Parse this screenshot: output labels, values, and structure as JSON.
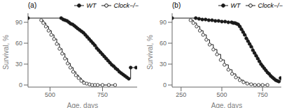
{
  "chart_data": [
    {
      "type": "step",
      "annotation": "(a)",
      "xlabel": "Age, days",
      "ylabel": "Survival, %",
      "xlim": [
        395,
        915
      ],
      "xticks": [
        500,
        750
      ],
      "ylim": [
        -3,
        103
      ],
      "yticks": [
        0,
        30,
        60,
        90
      ],
      "grid": false,
      "legend": "upper right",
      "series": [
        {
          "name": "WT",
          "color": "#1a1a1a",
          "marker": "filled_circle",
          "x": [
            395,
            553,
            563,
            572,
            581,
            590,
            598,
            607,
            616,
            624,
            632,
            641,
            650,
            659,
            668,
            677,
            686,
            695,
            704,
            713,
            722,
            731,
            740,
            749,
            758,
            767,
            776,
            785,
            794,
            803,
            812,
            821,
            830,
            839,
            848,
            857,
            866,
            875,
            884,
            910
          ],
          "values": [
            96,
            96,
            94,
            93,
            92,
            90,
            88,
            87,
            85,
            83,
            81,
            79,
            77,
            75,
            72,
            69,
            66,
            63,
            60,
            57,
            53,
            50,
            47,
            44,
            41,
            38,
            35,
            32,
            29,
            27,
            24,
            22,
            19,
            17,
            15,
            13,
            11,
            9,
            25,
            25
          ]
        },
        {
          "name": "Clock−/−",
          "color": "#1a1a1a",
          "marker": "open_circle",
          "x": [
            458,
            468,
            480,
            493,
            506,
            519,
            532,
            545,
            558,
            571,
            584,
            597,
            610,
            623,
            636,
            649,
            662,
            675,
            688,
            701,
            714,
            727,
            750,
            780,
            810
          ],
          "values": [
            93,
            89,
            84,
            78,
            72,
            66,
            59,
            52,
            45,
            38,
            31,
            25,
            19,
            14,
            10,
            6,
            3,
            2,
            1,
            0,
            0,
            0,
            0,
            0,
            0
          ]
        }
      ]
    },
    {
      "type": "step",
      "annotation": "(b)",
      "xlabel": "Age, days",
      "ylabel": "Survival, %",
      "xlim": [
        195,
        865
      ],
      "xticks": [
        250,
        500,
        750
      ],
      "ylim": [
        -3,
        103
      ],
      "yticks": [
        0,
        30,
        60,
        90
      ],
      "grid": false,
      "legend": "upper right",
      "series": [
        {
          "name": "WT",
          "color": "#1a1a1a",
          "marker": "filled_circle",
          "x": [
            195,
            340,
            360,
            380,
            400,
            420,
            440,
            460,
            480,
            500,
            520,
            540,
            560,
            570,
            580,
            590,
            600,
            610,
            620,
            630,
            640,
            650,
            660,
            670,
            680,
            690,
            700,
            710,
            720,
            730,
            740,
            750,
            760,
            770,
            780,
            790,
            800,
            810,
            820,
            830,
            840,
            850,
            860
          ],
          "values": [
            96,
            96,
            95,
            94,
            94,
            93,
            93,
            92,
            92,
            91,
            91,
            90,
            90,
            89,
            89,
            88,
            87,
            84,
            80,
            76,
            72,
            67,
            63,
            59,
            55,
            50,
            46,
            42,
            38,
            34,
            30,
            27,
            24,
            21,
            18,
            16,
            13,
            11,
            9,
            7,
            6,
            5,
            10
          ]
        },
        {
          "name": "Clock−/−",
          "color": "#1a1a1a",
          "marker": "open_circle",
          "x": [
            308,
            325,
            345,
            365,
            385,
            405,
            425,
            448,
            470,
            493,
            516,
            540,
            563,
            586,
            610,
            633,
            656,
            680,
            703,
            726,
            750,
            780
          ],
          "values": [
            93,
            89,
            84,
            78,
            72,
            65,
            58,
            51,
            44,
            36,
            29,
            22,
            16,
            11,
            7,
            4,
            2,
            1,
            0,
            0,
            0,
            0
          ]
        }
      ]
    }
  ]
}
